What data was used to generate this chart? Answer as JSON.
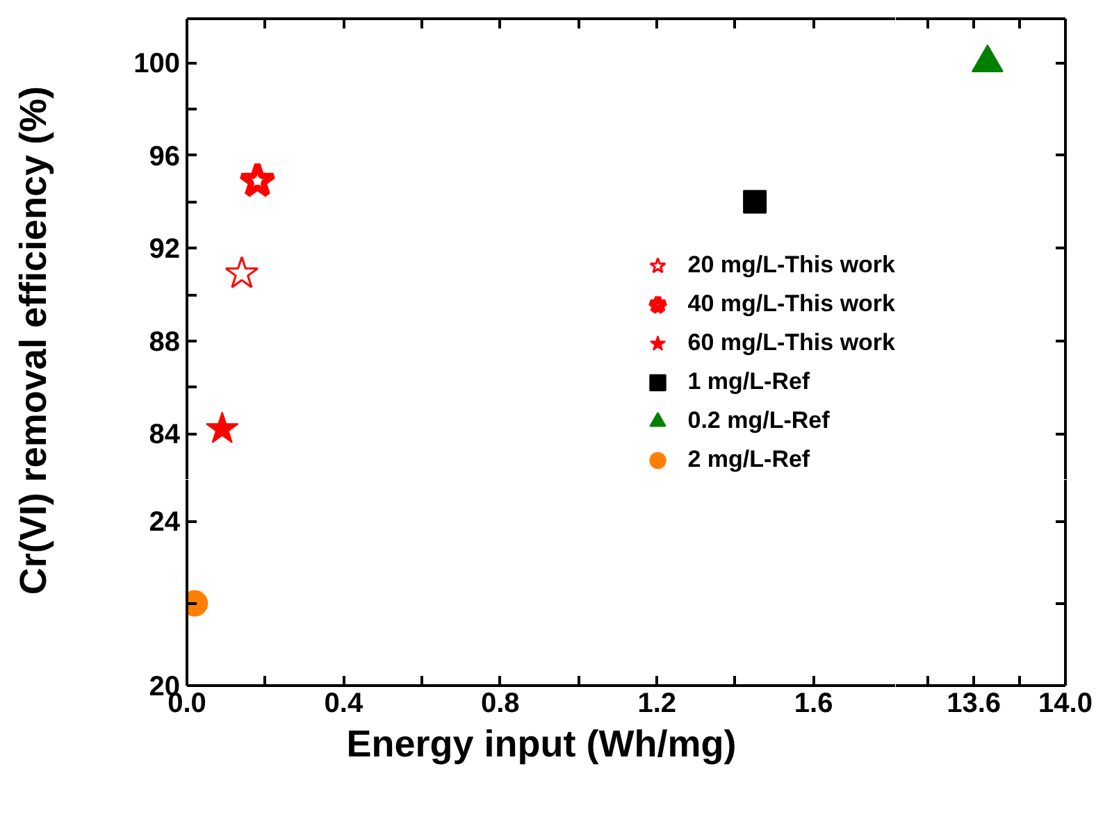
{
  "chart_data": [
    {
      "type": "scatter",
      "ylabel": "Cr(VI) removal efficiency (%)",
      "xlim": [
        0,
        1.81
      ],
      "ylim": [
        82.0,
        101.9
      ],
      "yticks": [
        84,
        {
          "value": 86,
          "label": null
        },
        88,
        {
          "value": 90,
          "label": null
        },
        92,
        {
          "value": 94,
          "label": null
        },
        96,
        {
          "value": 98,
          "label": null
        },
        100
      ],
      "xticks": [
        {
          "value": 0,
          "label": null
        },
        {
          "value": 0.2,
          "label": null
        },
        {
          "value": 0.4,
          "label": null
        },
        {
          "value": 0.6,
          "label": null
        },
        {
          "value": 0.8,
          "label": null
        },
        {
          "value": 1.0,
          "label": null
        },
        {
          "value": 1.2,
          "label": null
        },
        {
          "value": 1.4,
          "label": null
        },
        {
          "value": 1.6,
          "label": null
        }
      ],
      "tick_labels": "y",
      "legend": "bottom right",
      "grid": false,
      "series": [
        {
          "name": "20 mg/L-This work",
          "color": "#ff0000",
          "marker": "star-open",
          "x": [
            0.14
          ],
          "values": [
            90.9
          ]
        },
        {
          "name": "40 mg/L-This work",
          "color": "#ff0000",
          "marker": "star-bold",
          "x": [
            0.18
          ],
          "values": [
            94.9
          ]
        },
        {
          "name": "60 mg/L-This work",
          "color": "#ff0000",
          "marker": "star",
          "x": [
            0.09
          ],
          "values": [
            84.2
          ]
        },
        {
          "name": "1 mg/L-Ref",
          "color": "#000000",
          "marker": "square",
          "x": [
            1.45
          ],
          "values": [
            94.0
          ]
        }
      ]
    },
    {
      "type": "scatter",
      "xlim": [
        13.26,
        14.0
      ],
      "ylim": [
        82.0,
        101.9
      ],
      "yticks": [
        {
          "value": 84,
          "label": null
        },
        {
          "value": 88,
          "label": null
        },
        {
          "value": 92,
          "label": null
        },
        {
          "value": 96,
          "label": null
        },
        {
          "value": 100,
          "label": null
        }
      ],
      "xticks": [
        {
          "value": 13.4,
          "label": null
        },
        {
          "value": 13.6,
          "label": null
        },
        {
          "value": 13.8,
          "label": null
        }
      ],
      "tick_labels": false,
      "grid": false,
      "series": [
        {
          "name": "0.2 mg/L-Ref",
          "color": "#008000",
          "marker": "triangle",
          "x": [
            13.66
          ],
          "values": [
            100
          ]
        }
      ]
    },
    {
      "type": "scatter",
      "xlabel": "Energy input (Wh/mg)",
      "xlim": [
        0,
        1.81
      ],
      "ylim": [
        20,
        25.0
      ],
      "yticks": [
        20,
        {
          "value": 22,
          "label": null
        },
        24
      ],
      "xticks": [
        "0.0",
        {
          "value": 0.2,
          "label": null
        },
        0.4,
        {
          "value": 0.6,
          "label": null
        },
        0.8,
        {
          "value": 1.0,
          "label": null
        },
        1.2,
        {
          "value": 1.4,
          "label": null
        },
        1.6
      ],
      "grid": false,
      "series": [
        {
          "name": "2 mg/L-Ref",
          "color": "#ff8000",
          "marker": "circle",
          "x": [
            0.02
          ],
          "values": [
            22.0
          ]
        }
      ]
    },
    {
      "type": "scatter",
      "xlim": [
        13.26,
        14.0
      ],
      "ylim": [
        20,
        25.0
      ],
      "yticks": [
        {
          "value": 22,
          "label": null
        },
        {
          "value": 24,
          "label": null
        }
      ],
      "xticks": [
        {
          "value": 13.4,
          "label": null
        },
        13.6,
        {
          "value": 13.8,
          "label": null
        },
        {
          "value": 14.0,
          "label": "14.0"
        }
      ],
      "tick_labels": "x",
      "grid": false
    }
  ]
}
